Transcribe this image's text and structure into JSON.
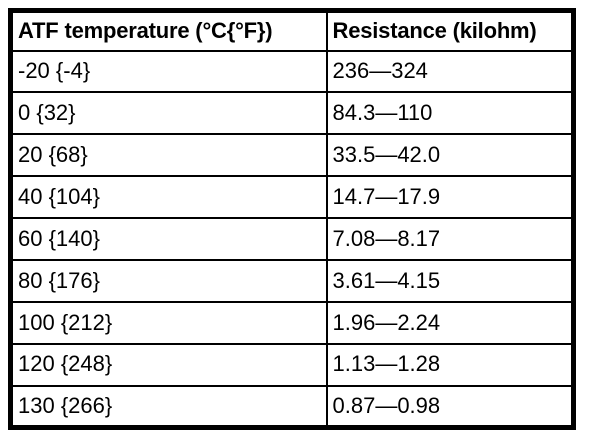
{
  "table": {
    "columns": [
      {
        "label": "ATF temperature (°C{°F})"
      },
      {
        "label": "Resistance (kilohm)"
      }
    ],
    "rows": [
      {
        "temperature": "-20 {-4}",
        "resistance": "236—324"
      },
      {
        "temperature": "0 {32}",
        "resistance": "84.3—110"
      },
      {
        "temperature": "20 {68}",
        "resistance": "33.5—42.0"
      },
      {
        "temperature": "40 {104}",
        "resistance": "14.7—17.9"
      },
      {
        "temperature": "60 {140}",
        "resistance": "7.08—8.17"
      },
      {
        "temperature": "80 {176}",
        "resistance": "3.61—4.15"
      },
      {
        "temperature": "100 {212}",
        "resistance": "1.96—2.24"
      },
      {
        "temperature": "120 {248}",
        "resistance": "1.13—1.28"
      },
      {
        "temperature": "130 {266}",
        "resistance": "0.87—0.98"
      }
    ],
    "colors": {
      "border": "#000000",
      "text": "#000000",
      "background": "#ffffff"
    }
  }
}
